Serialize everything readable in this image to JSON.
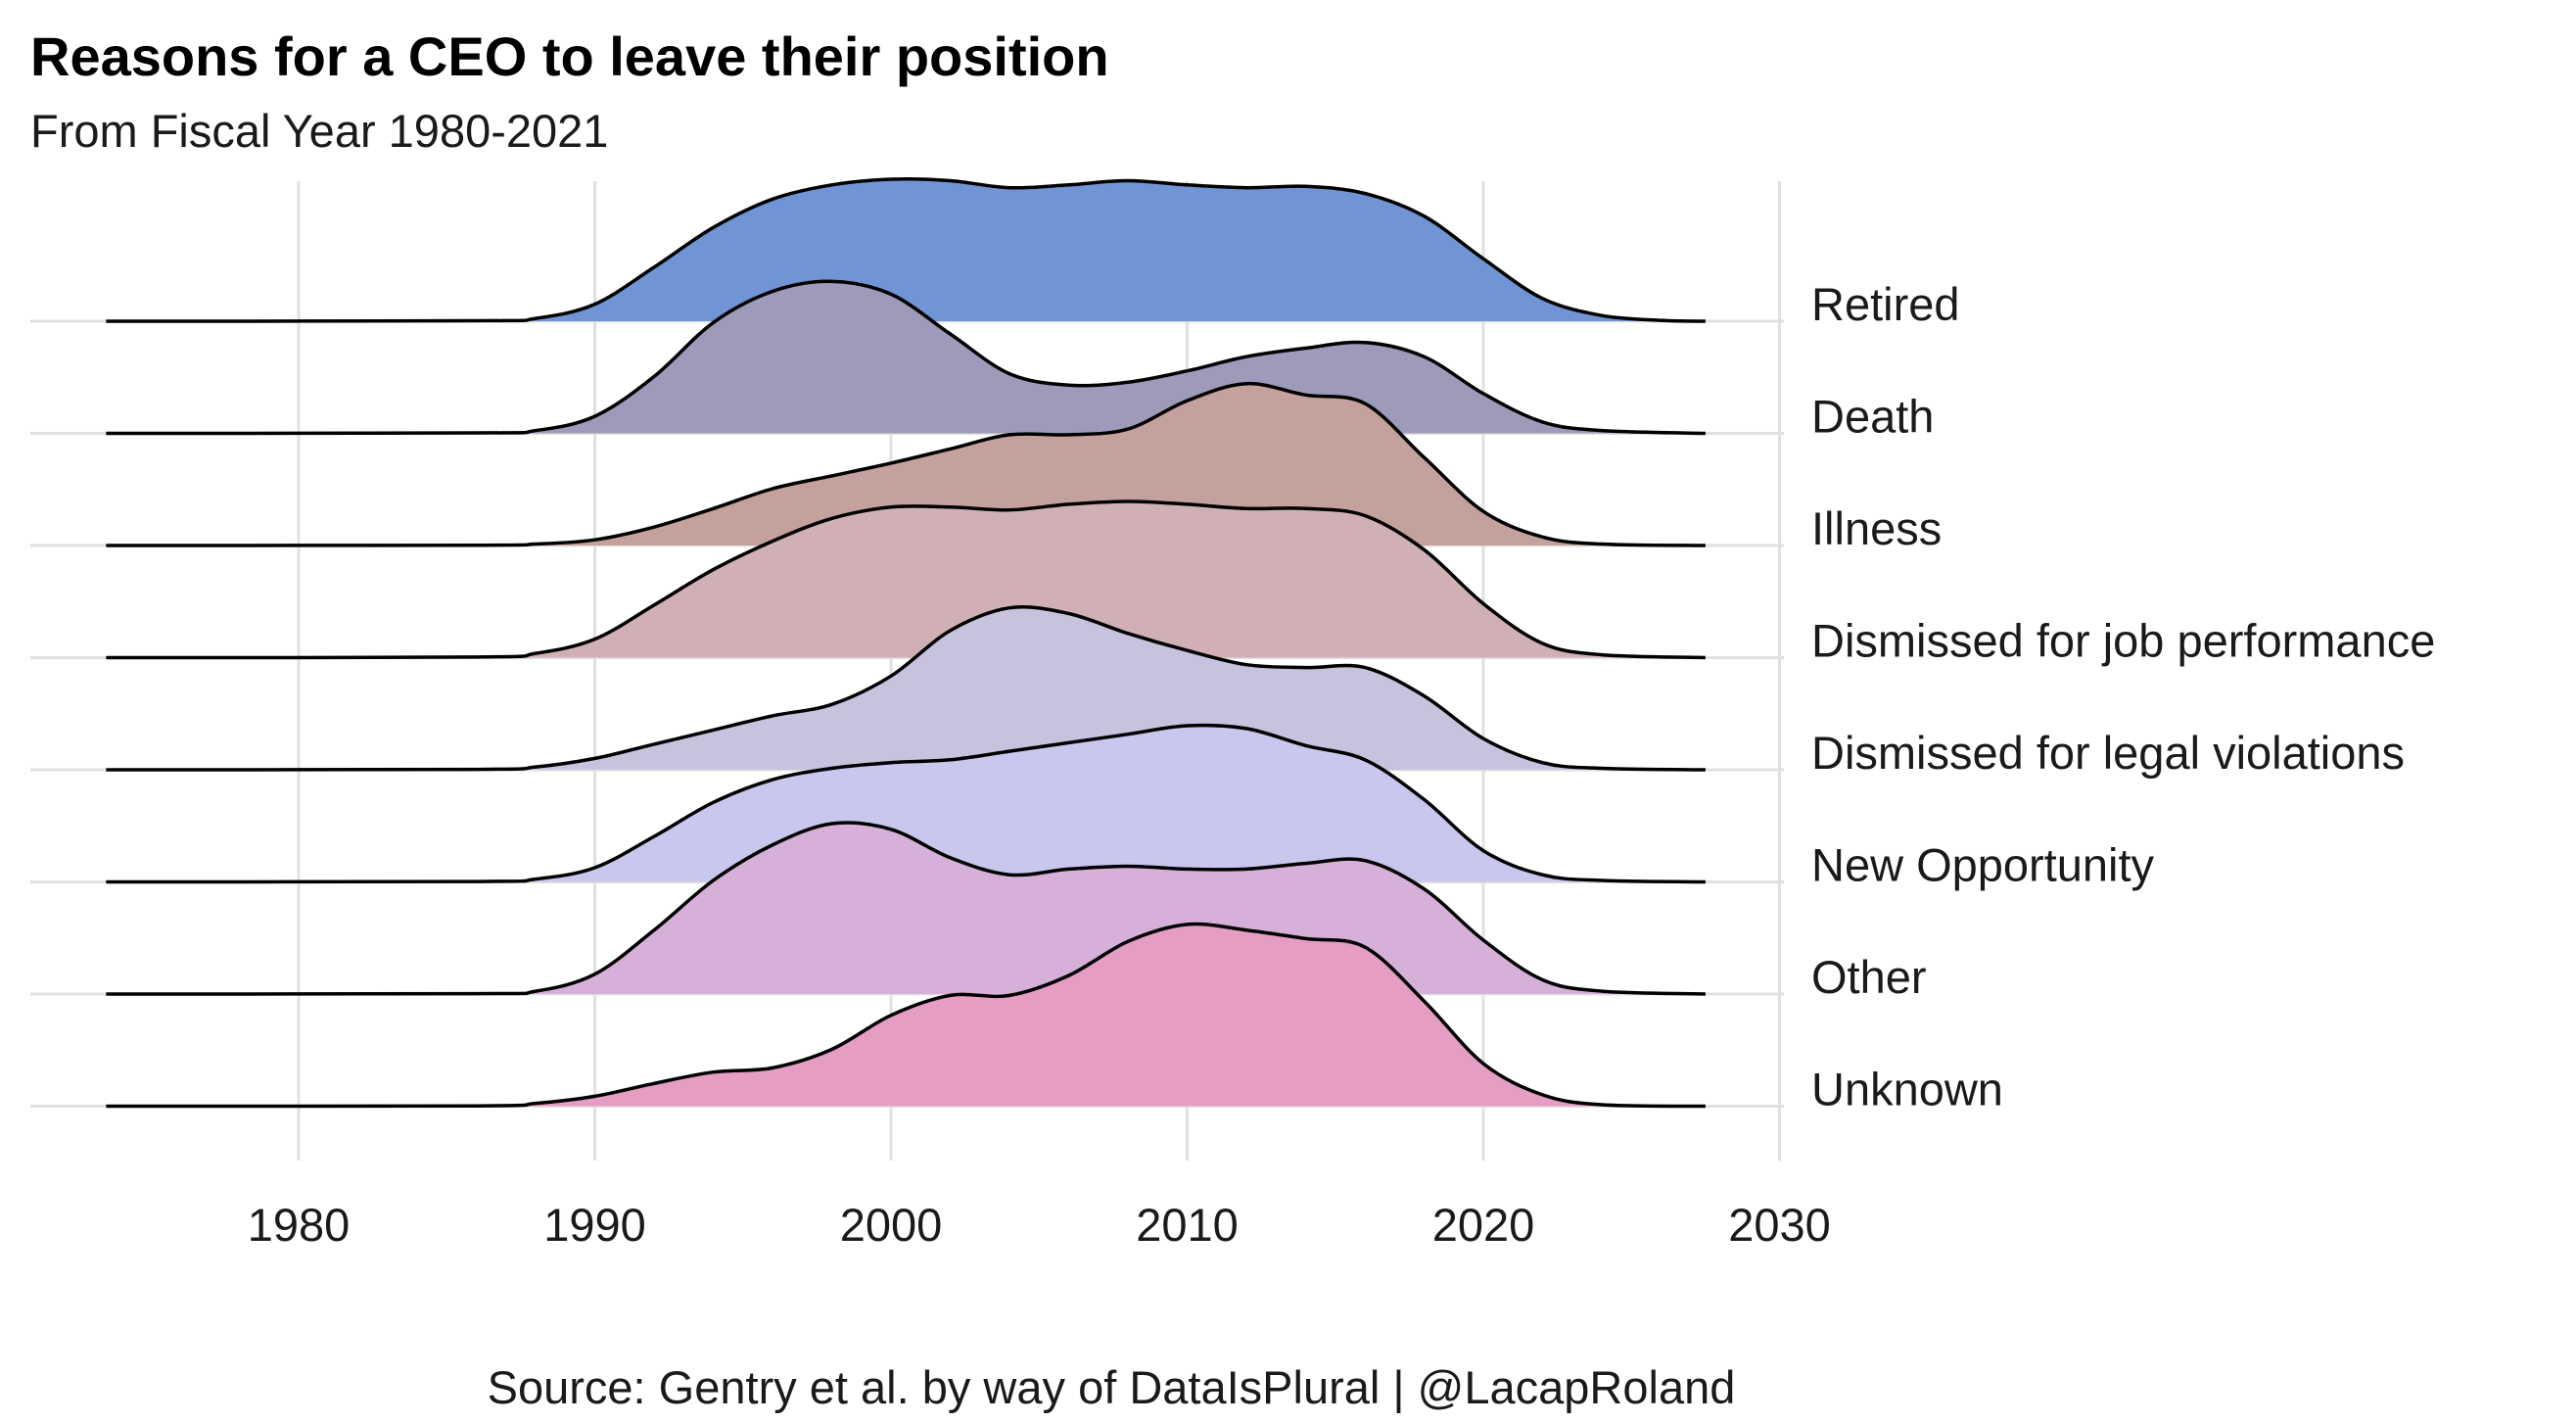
{
  "title": "Reasons for a CEO to leave their position",
  "subtitle": "From Fiscal Year 1980-2021",
  "caption": "Source: Gentry et al. by way of DataIsPlural | @LacapRoland",
  "chart_data": {
    "type": "ridgeline",
    "x_ticks": [
      "1980",
      "1990",
      "2000",
      "2010",
      "2020",
      "2030"
    ],
    "xlim": [
      1972,
      2032
    ],
    "density_range": [
      1973.5,
      2027.5
    ],
    "grid": true,
    "series": [
      {
        "name": "Retired",
        "color": "#7094d4",
        "points": [
          [
            1973.5,
            0
          ],
          [
            1986,
            0.003
          ],
          [
            1988,
            0.02
          ],
          [
            1990,
            0.12
          ],
          [
            1992,
            0.38
          ],
          [
            1994,
            0.66
          ],
          [
            1996,
            0.86
          ],
          [
            1998,
            0.96
          ],
          [
            2000,
            1.0
          ],
          [
            2002,
            0.99
          ],
          [
            2004,
            0.94
          ],
          [
            2006,
            0.96
          ],
          [
            2008,
            0.99
          ],
          [
            2010,
            0.96
          ],
          [
            2012,
            0.94
          ],
          [
            2014,
            0.95
          ],
          [
            2016,
            0.9
          ],
          [
            2018,
            0.74
          ],
          [
            2020,
            0.44
          ],
          [
            2022,
            0.16
          ],
          [
            2024,
            0.04
          ],
          [
            2026,
            0.006
          ],
          [
            2027.5,
            0
          ]
        ]
      },
      {
        "name": "Death",
        "color": "#9e9bba",
        "points": [
          [
            1973.5,
            0
          ],
          [
            1986,
            0.003
          ],
          [
            1988,
            0.02
          ],
          [
            1990,
            0.12
          ],
          [
            1992,
            0.4
          ],
          [
            1994,
            0.78
          ],
          [
            1996,
            1.0
          ],
          [
            1998,
            1.07
          ],
          [
            2000,
            0.98
          ],
          [
            2002,
            0.7
          ],
          [
            2004,
            0.42
          ],
          [
            2006,
            0.34
          ],
          [
            2008,
            0.36
          ],
          [
            2010,
            0.44
          ],
          [
            2012,
            0.54
          ],
          [
            2014,
            0.6
          ],
          [
            2016,
            0.64
          ],
          [
            2018,
            0.54
          ],
          [
            2020,
            0.28
          ],
          [
            2022,
            0.08
          ],
          [
            2024,
            0.02
          ],
          [
            2027.5,
            0
          ]
        ]
      },
      {
        "name": "Illness",
        "color": "#c5a19d",
        "points": [
          [
            1973.5,
            0
          ],
          [
            1986,
            0.002
          ],
          [
            1988,
            0.01
          ],
          [
            1990,
            0.04
          ],
          [
            1992,
            0.13
          ],
          [
            1994,
            0.26
          ],
          [
            1996,
            0.4
          ],
          [
            1998,
            0.49
          ],
          [
            2000,
            0.58
          ],
          [
            2002,
            0.68
          ],
          [
            2004,
            0.78
          ],
          [
            2006,
            0.78
          ],
          [
            2008,
            0.82
          ],
          [
            2010,
            1.02
          ],
          [
            2012,
            1.14
          ],
          [
            2014,
            1.06
          ],
          [
            2016,
            1.0
          ],
          [
            2018,
            0.62
          ],
          [
            2020,
            0.24
          ],
          [
            2022,
            0.06
          ],
          [
            2024,
            0.01
          ],
          [
            2027.5,
            0
          ]
        ]
      },
      {
        "name": "Dismissed for job performance",
        "color": "#d0b0b5",
        "points": [
          [
            1973.5,
            0
          ],
          [
            1986,
            0.004
          ],
          [
            1988,
            0.03
          ],
          [
            1990,
            0.13
          ],
          [
            1992,
            0.37
          ],
          [
            1994,
            0.62
          ],
          [
            1996,
            0.82
          ],
          [
            1998,
            0.98
          ],
          [
            2000,
            1.06
          ],
          [
            2002,
            1.06
          ],
          [
            2004,
            1.04
          ],
          [
            2006,
            1.08
          ],
          [
            2008,
            1.1
          ],
          [
            2010,
            1.08
          ],
          [
            2012,
            1.05
          ],
          [
            2014,
            1.05
          ],
          [
            2016,
            1.0
          ],
          [
            2018,
            0.76
          ],
          [
            2020,
            0.38
          ],
          [
            2022,
            0.1
          ],
          [
            2024,
            0.02
          ],
          [
            2027.5,
            0
          ]
        ]
      },
      {
        "name": "Dismissed for legal violations",
        "color": "#c9c2de",
        "points": [
          [
            1973.5,
            0
          ],
          [
            1986,
            0.003
          ],
          [
            1988,
            0.02
          ],
          [
            1990,
            0.08
          ],
          [
            1992,
            0.18
          ],
          [
            1994,
            0.28
          ],
          [
            1996,
            0.38
          ],
          [
            1998,
            0.46
          ],
          [
            2000,
            0.66
          ],
          [
            2002,
            0.98
          ],
          [
            2004,
            1.14
          ],
          [
            2006,
            1.1
          ],
          [
            2008,
            0.96
          ],
          [
            2010,
            0.84
          ],
          [
            2012,
            0.74
          ],
          [
            2014,
            0.72
          ],
          [
            2016,
            0.72
          ],
          [
            2018,
            0.52
          ],
          [
            2020,
            0.22
          ],
          [
            2022,
            0.05
          ],
          [
            2024,
            0.01
          ],
          [
            2027.5,
            0
          ]
        ]
      },
      {
        "name": "New Opportunity",
        "color": "#cac7ee",
        "points": [
          [
            1973.5,
            0
          ],
          [
            1986,
            0.003
          ],
          [
            1988,
            0.02
          ],
          [
            1990,
            0.1
          ],
          [
            1992,
            0.32
          ],
          [
            1994,
            0.56
          ],
          [
            1996,
            0.72
          ],
          [
            1998,
            0.8
          ],
          [
            2000,
            0.84
          ],
          [
            2002,
            0.86
          ],
          [
            2004,
            0.92
          ],
          [
            2006,
            0.98
          ],
          [
            2008,
            1.04
          ],
          [
            2010,
            1.1
          ],
          [
            2012,
            1.08
          ],
          [
            2014,
            0.96
          ],
          [
            2016,
            0.86
          ],
          [
            2018,
            0.58
          ],
          [
            2020,
            0.22
          ],
          [
            2022,
            0.05
          ],
          [
            2024,
            0.01
          ],
          [
            2027.5,
            0
          ]
        ]
      },
      {
        "name": "Other",
        "color": "#d6b0d9",
        "points": [
          [
            1973.5,
            0
          ],
          [
            1986,
            0.003
          ],
          [
            1988,
            0.02
          ],
          [
            1990,
            0.14
          ],
          [
            1992,
            0.45
          ],
          [
            1994,
            0.8
          ],
          [
            1996,
            1.05
          ],
          [
            1998,
            1.2
          ],
          [
            2000,
            1.16
          ],
          [
            2002,
            0.96
          ],
          [
            2004,
            0.84
          ],
          [
            2006,
            0.88
          ],
          [
            2008,
            0.9
          ],
          [
            2010,
            0.88
          ],
          [
            2012,
            0.88
          ],
          [
            2014,
            0.92
          ],
          [
            2016,
            0.94
          ],
          [
            2018,
            0.74
          ],
          [
            2020,
            0.38
          ],
          [
            2022,
            0.1
          ],
          [
            2024,
            0.02
          ],
          [
            2027.5,
            0
          ]
        ]
      },
      {
        "name": "Unknown",
        "color": "#e69dc3",
        "points": [
          [
            1973.5,
            0
          ],
          [
            1986,
            0.002
          ],
          [
            1988,
            0.02
          ],
          [
            1990,
            0.07
          ],
          [
            1992,
            0.16
          ],
          [
            1994,
            0.24
          ],
          [
            1996,
            0.27
          ],
          [
            1998,
            0.4
          ],
          [
            2000,
            0.64
          ],
          [
            2002,
            0.78
          ],
          [
            2004,
            0.78
          ],
          [
            2006,
            0.92
          ],
          [
            2008,
            1.16
          ],
          [
            2010,
            1.28
          ],
          [
            2012,
            1.24
          ],
          [
            2014,
            1.18
          ],
          [
            2016,
            1.12
          ],
          [
            2018,
            0.74
          ],
          [
            2020,
            0.3
          ],
          [
            2022,
            0.08
          ],
          [
            2024,
            0.01
          ],
          [
            2027.5,
            0
          ]
        ]
      }
    ]
  }
}
